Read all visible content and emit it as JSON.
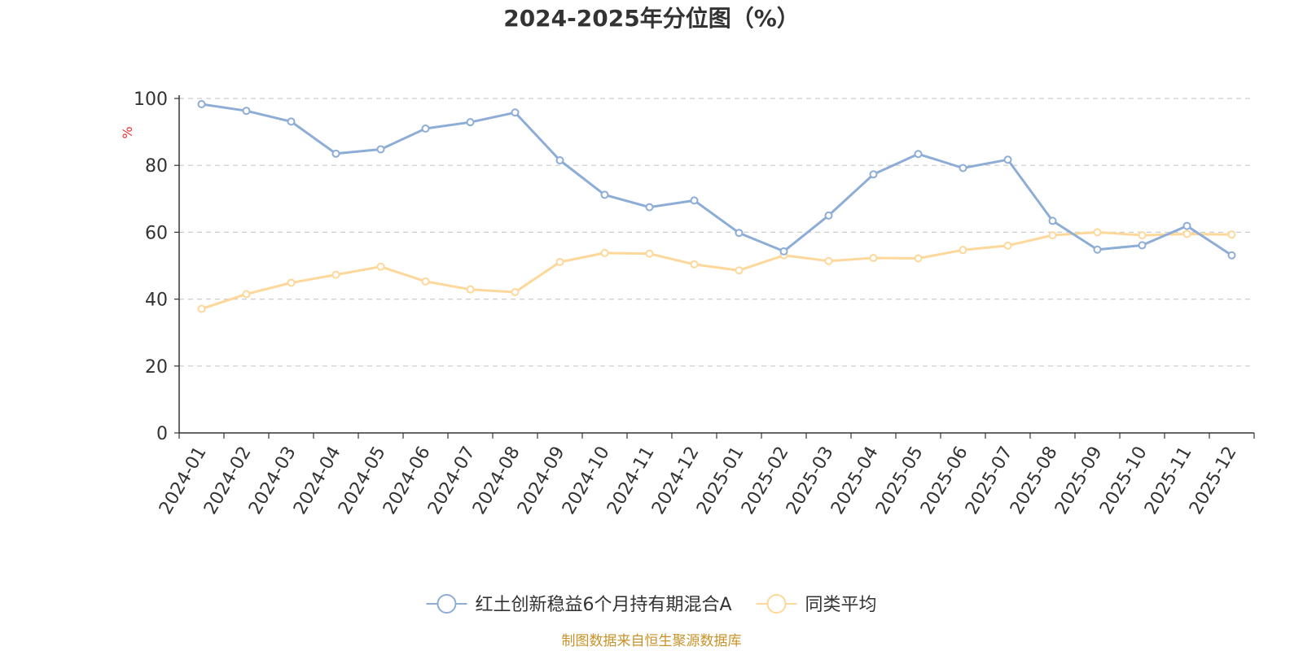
{
  "chart_data": {
    "type": "line",
    "title": "2024-2025年分位图（%）",
    "ylabel": "%",
    "ylim": [
      0,
      100
    ],
    "yticks": [
      0,
      20,
      40,
      60,
      80,
      100
    ],
    "grid": true,
    "legend_position": "bottom",
    "categories": [
      "2024-01",
      "2024-02",
      "2024-03",
      "2024-04",
      "2024-05",
      "2024-06",
      "2024-07",
      "2024-08",
      "2024-09",
      "2024-10",
      "2024-11",
      "2024-12",
      "2025-01",
      "2025-02",
      "2025-03",
      "2025-04",
      "2025-05",
      "2025-06",
      "2025-07",
      "2025-08",
      "2025-09",
      "2025-10",
      "2025-11",
      "2025-12"
    ],
    "series": [
      {
        "name": "红土创新稳益6个月持有期混合A",
        "color": "#8eadd6",
        "values": [
          98.3,
          96.3,
          93.1,
          83.5,
          84.8,
          91.0,
          92.9,
          95.8,
          81.5,
          71.2,
          67.5,
          69.5,
          59.8,
          54.3,
          65.0,
          77.3,
          83.4,
          79.2,
          81.7,
          63.4,
          54.8,
          56.1,
          61.9,
          53.1
        ]
      },
      {
        "name": "同类平均",
        "color": "#fdd89a",
        "values": [
          37.1,
          41.5,
          44.9,
          47.3,
          49.7,
          45.3,
          42.9,
          42.1,
          51.1,
          53.8,
          53.6,
          50.4,
          48.6,
          53.1,
          51.4,
          52.3,
          52.2,
          54.7,
          56.0,
          59.1,
          60.0,
          59.1,
          59.5,
          59.3
        ]
      }
    ]
  },
  "source": "制图数据来自恒生聚源数据库",
  "colors": {
    "axis": "#333333",
    "grid": "#cccccc",
    "ylabel": "#e8302a",
    "source": "#c8922a"
  }
}
